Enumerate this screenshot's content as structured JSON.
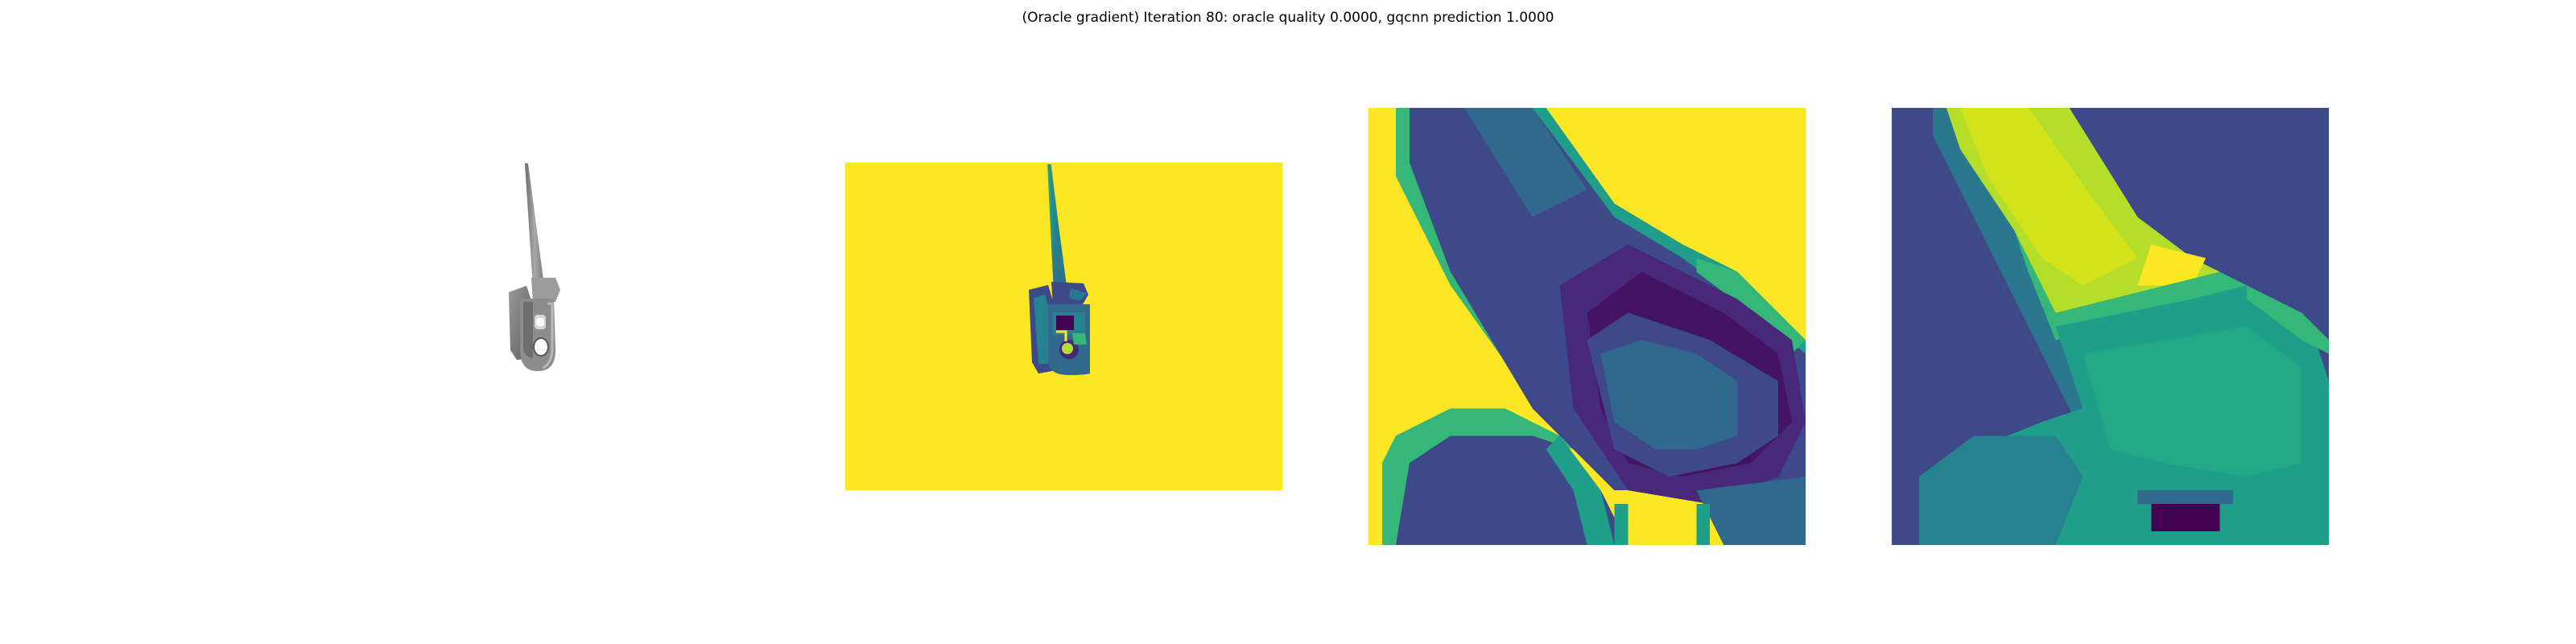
{
  "figure": {
    "title": "(Oracle gradient) Iteration 80: oracle quality 0.0000, gqcnn prediction 1.0000"
  },
  "palette": {
    "viridis_yellow": "#fde725",
    "viridis_yellow_green": "#b5de2b",
    "viridis_green": "#35b779",
    "viridis_teal": "#1f9e89",
    "viridis_cyan": "#26828e",
    "viridis_blue": "#31688e",
    "viridis_indigo": "#3e4989",
    "viridis_purple": "#482878",
    "viridis_dark": "#440154",
    "render_gray": "#8a8a8a",
    "render_light": "#b8b8b8",
    "render_dark": "#5c5c5c",
    "background": "#ffffff"
  },
  "panels": [
    {
      "id": "rendered-object",
      "kind": "grayscale-render"
    },
    {
      "id": "depth-image",
      "kind": "viridis-depth"
    },
    {
      "id": "grasp-crop",
      "kind": "viridis-crop"
    },
    {
      "id": "gradient-crop",
      "kind": "viridis-gradient"
    }
  ]
}
